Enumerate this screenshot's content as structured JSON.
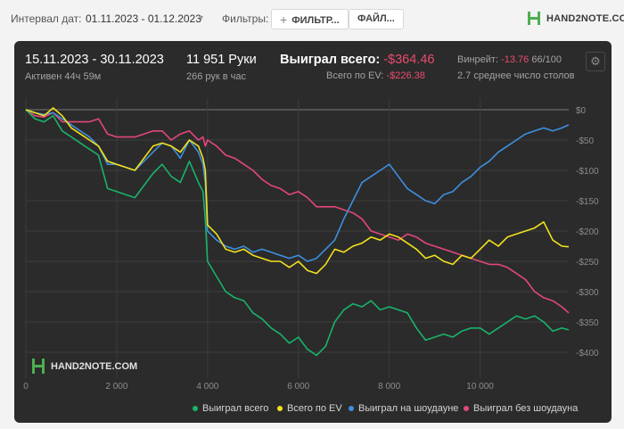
{
  "toolbar": {
    "date_interval_label": "Интервал дат:",
    "date_range": "01.11.2023 - 01.12.2023",
    "filters_label": "Фильтры:",
    "filters_button": "ФИЛЬТР...",
    "files_button": "ФАЙЛ...",
    "logo": "HAND2NOTE.COM"
  },
  "stats": {
    "period": "15.11.2023 - 30.11.2023",
    "active": "Активен 44ч 59м",
    "hands": "11 951 Руки",
    "hands_per_hour": "266 рук в час",
    "won_total_label": "Выиграл всего:",
    "won_total_value": "-$364.46",
    "ev_label": "Всего по EV:",
    "ev_value": "-$226.38",
    "winrate_label": "Винрейт:",
    "winrate_value": "-13.76",
    "winrate_unit": "66/100",
    "avg_tables": "2.7 среднее число столов"
  },
  "watermark": "HAND2NOTE.COM",
  "colors": {
    "won_total": "#19b36b",
    "ev": "#f2e11c",
    "showdown": "#3d8fe0",
    "non_showdown": "#e24779",
    "background": "#2b2b2b"
  },
  "chart_data": {
    "type": "line",
    "title": "",
    "xlabel": "",
    "ylabel": "",
    "xlim": [
      0,
      11951
    ],
    "ylim": [
      -420,
      10
    ],
    "x_ticks": [
      0,
      2000,
      4000,
      6000,
      8000,
      10000
    ],
    "x_tick_labels": [
      "0",
      "2 000",
      "4 000",
      "6 000",
      "8 000",
      "10 000"
    ],
    "y_ticks": [
      0,
      -50,
      -100,
      -150,
      -200,
      -250,
      -300,
      -350,
      -400
    ],
    "y_tick_labels": [
      "$0",
      "-$50",
      "-$100",
      "-$150",
      "-$200",
      "-$250",
      "-$300",
      "-$350",
      "-$400"
    ],
    "grid": true,
    "legend_position": "bottom",
    "series": [
      {
        "name": "Выиграл всего",
        "x": [
          0,
          200,
          400,
          600,
          800,
          1000,
          1200,
          1400,
          1600,
          1800,
          2000,
          2200,
          2400,
          2600,
          2800,
          3000,
          3200,
          3400,
          3600,
          3800,
          3900,
          3950,
          4000,
          4200,
          4400,
          4600,
          4800,
          5000,
          5200,
          5400,
          5600,
          5800,
          6000,
          6200,
          6400,
          6600,
          6800,
          7000,
          7200,
          7400,
          7600,
          7800,
          8000,
          8200,
          8400,
          8600,
          8800,
          9000,
          9200,
          9400,
          9600,
          9800,
          10000,
          10200,
          10400,
          10600,
          10800,
          11000,
          11200,
          11400,
          11600,
          11800,
          11951
        ],
        "values": [
          0,
          -15,
          -20,
          -10,
          -35,
          -45,
          -55,
          -65,
          -75,
          -130,
          -135,
          -140,
          -145,
          -125,
          -105,
          -90,
          -110,
          -120,
          -85,
          -120,
          -135,
          -180,
          -250,
          -275,
          -300,
          -310,
          -315,
          -335,
          -345,
          -360,
          -370,
          -385,
          -375,
          -395,
          -405,
          -390,
          -350,
          -330,
          -320,
          -325,
          -315,
          -330,
          -325,
          -330,
          -335,
          -360,
          -380,
          -375,
          -370,
          -375,
          -365,
          -360,
          -360,
          -370,
          -360,
          -350,
          -340,
          -345,
          -340,
          -350,
          -365,
          -360,
          -363
        ]
      },
      {
        "name": "Всего по EV",
        "x": [
          0,
          200,
          400,
          600,
          800,
          1000,
          1200,
          1400,
          1600,
          1800,
          2000,
          2200,
          2400,
          2600,
          2800,
          3000,
          3200,
          3400,
          3600,
          3800,
          3900,
          3950,
          4000,
          4200,
          4400,
          4600,
          4800,
          5000,
          5200,
          5400,
          5600,
          5800,
          6000,
          6200,
          6400,
          6600,
          6800,
          7000,
          7200,
          7400,
          7600,
          7800,
          8000,
          8200,
          8400,
          8600,
          8800,
          9000,
          9200,
          9400,
          9600,
          9800,
          10000,
          10200,
          10400,
          10600,
          10800,
          11000,
          11200,
          11400,
          11600,
          11800,
          11951
        ],
        "values": [
          0,
          -5,
          -10,
          3,
          -10,
          -30,
          -40,
          -50,
          -60,
          -85,
          -90,
          -95,
          -100,
          -80,
          -60,
          -55,
          -60,
          -70,
          -50,
          -60,
          -80,
          -100,
          -190,
          -205,
          -230,
          -235,
          -230,
          -240,
          -245,
          -250,
          -250,
          -260,
          -250,
          -265,
          -270,
          -255,
          -230,
          -235,
          -225,
          -220,
          -210,
          -215,
          -205,
          -210,
          -220,
          -230,
          -245,
          -240,
          -250,
          -255,
          -240,
          -245,
          -230,
          -215,
          -225,
          -210,
          -205,
          -200,
          -195,
          -185,
          -215,
          -225,
          -226
        ]
      },
      {
        "name": "Выиграл на шоудауне",
        "x": [
          0,
          200,
          400,
          600,
          800,
          1000,
          1200,
          1400,
          1600,
          1800,
          2000,
          2200,
          2400,
          2600,
          2800,
          3000,
          3200,
          3400,
          3600,
          3800,
          3900,
          3950,
          4000,
          4200,
          4400,
          4600,
          4800,
          5000,
          5200,
          5400,
          5600,
          5800,
          6000,
          6200,
          6400,
          6600,
          6800,
          7000,
          7200,
          7400,
          7600,
          7800,
          8000,
          8200,
          8400,
          8600,
          8800,
          9000,
          9200,
          9400,
          9600,
          9800,
          10000,
          10200,
          10400,
          10600,
          10800,
          11000,
          11200,
          11400,
          11600,
          11800,
          11951
        ],
        "values": [
          0,
          -5,
          -8,
          -5,
          -15,
          -25,
          -35,
          -45,
          -60,
          -90,
          -90,
          -95,
          -100,
          -85,
          -70,
          -55,
          -60,
          -80,
          -50,
          -70,
          -90,
          -120,
          -200,
          -215,
          -225,
          -230,
          -225,
          -235,
          -230,
          -235,
          -240,
          -245,
          -240,
          -250,
          -245,
          -230,
          -215,
          -180,
          -150,
          -120,
          -110,
          -100,
          -90,
          -110,
          -130,
          -140,
          -150,
          -155,
          -140,
          -135,
          -120,
          -110,
          -95,
          -85,
          -70,
          -60,
          -50,
          -40,
          -35,
          -30,
          -35,
          -30,
          -25
        ]
      },
      {
        "name": "Выиграл без шоудауна",
        "x": [
          0,
          200,
          400,
          600,
          800,
          1000,
          1200,
          1400,
          1600,
          1800,
          2000,
          2200,
          2400,
          2600,
          2800,
          3000,
          3200,
          3400,
          3600,
          3800,
          3900,
          3950,
          4000,
          4200,
          4400,
          4600,
          4800,
          5000,
          5200,
          5400,
          5600,
          5800,
          6000,
          6200,
          6400,
          6600,
          6800,
          7000,
          7200,
          7400,
          7600,
          7800,
          8000,
          8200,
          8400,
          8600,
          8800,
          9000,
          9200,
          9400,
          9600,
          9800,
          10000,
          10200,
          10400,
          10600,
          10800,
          11000,
          11200,
          11400,
          11600,
          11800,
          11951
        ],
        "values": [
          0,
          -10,
          -12,
          -5,
          -20,
          -20,
          -20,
          -20,
          -15,
          -40,
          -45,
          -45,
          -45,
          -40,
          -35,
          -35,
          -50,
          -40,
          -35,
          -50,
          -45,
          -60,
          -50,
          -60,
          -75,
          -80,
          -90,
          -100,
          -115,
          -125,
          -130,
          -140,
          -135,
          -145,
          -160,
          -160,
          -160,
          -165,
          -170,
          -180,
          -200,
          -205,
          -210,
          -215,
          -205,
          -210,
          -220,
          -225,
          -230,
          -235,
          -240,
          -245,
          -250,
          -255,
          -255,
          -260,
          -270,
          -280,
          -300,
          -310,
          -315,
          -325,
          -335
        ]
      }
    ]
  }
}
